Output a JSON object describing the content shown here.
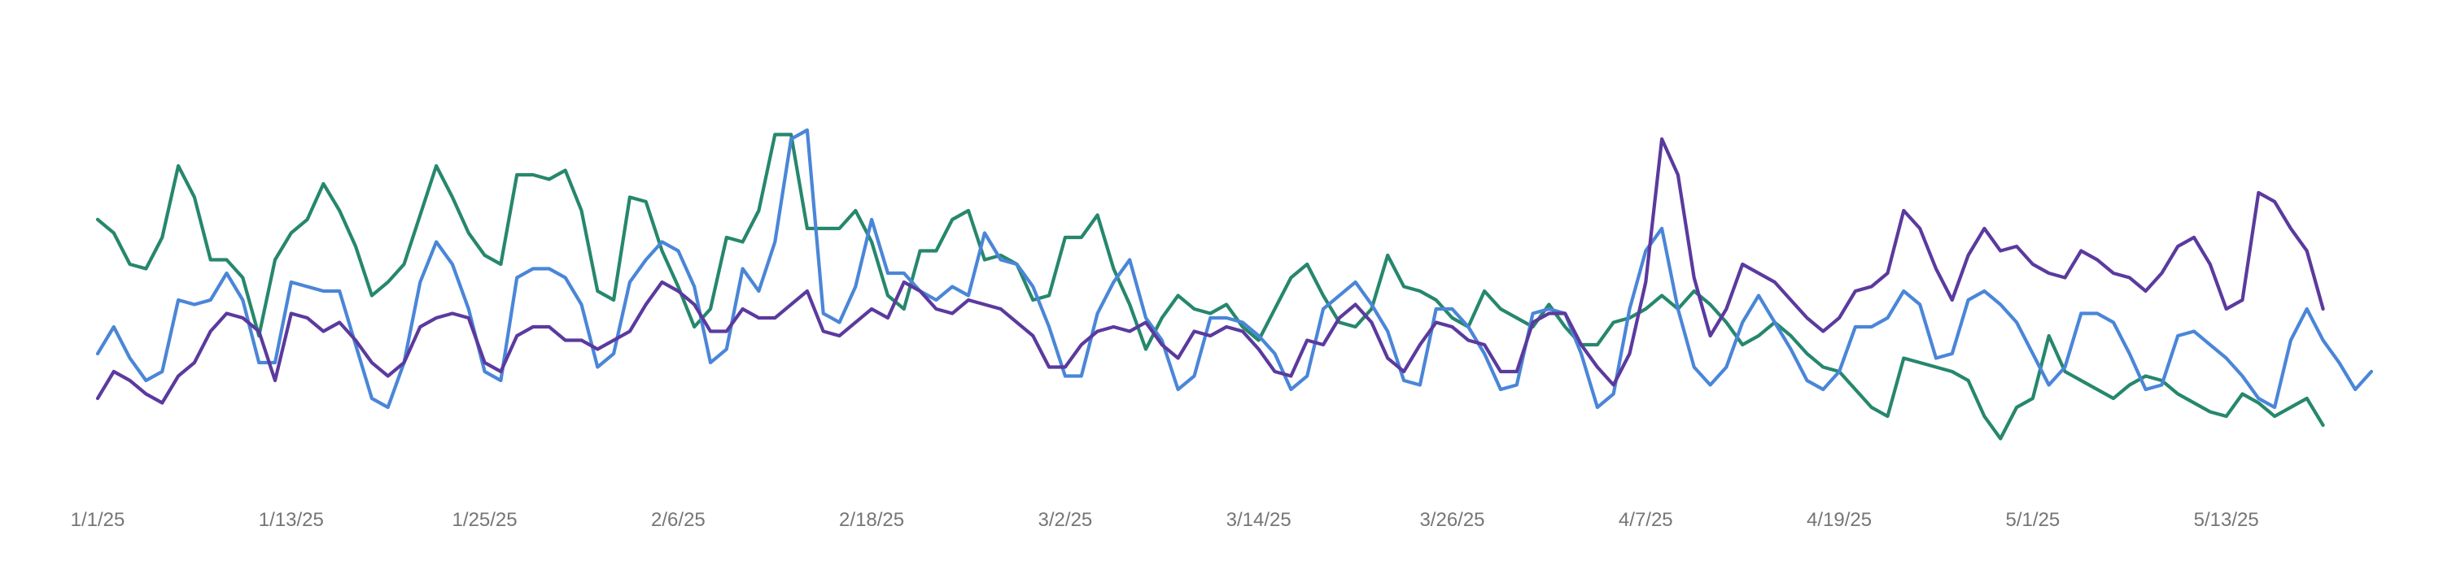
{
  "chart_data": {
    "type": "line",
    "title": "",
    "xlabel": "",
    "ylabel": "",
    "grid": false,
    "legend": "none",
    "x_start": "2025-01-01",
    "x_ticks": [
      "1/1/25",
      "1/13/25",
      "1/25/25",
      "2/6/25",
      "2/18/25",
      "3/2/25",
      "3/14/25",
      "3/26/25",
      "4/7/25",
      "4/19/25",
      "5/1/25",
      "5/13/25"
    ],
    "ylim": [
      0,
      100
    ],
    "series": [
      {
        "color": "#26876c",
        "values": [
          60,
          57,
          50,
          49,
          56,
          72,
          65,
          51,
          51,
          47,
          34,
          51,
          57,
          60,
          68,
          62,
          54,
          43,
          46,
          50,
          61,
          72,
          65,
          57,
          52,
          50,
          70,
          70,
          69,
          71,
          62,
          44,
          42,
          65,
          64,
          53,
          45,
          36,
          40,
          56,
          55,
          62,
          79,
          79,
          58,
          58,
          58,
          62,
          55,
          43,
          40,
          53,
          53,
          60,
          62,
          51,
          52,
          50,
          42,
          43,
          56,
          56,
          61,
          49,
          41,
          31,
          38,
          43,
          40,
          39,
          41,
          36,
          33,
          40,
          47,
          50,
          43,
          37,
          36,
          40,
          52,
          45,
          44,
          42,
          38,
          36,
          44,
          40,
          38,
          36,
          41,
          36,
          32,
          32,
          37,
          38,
          40,
          43,
          40,
          44,
          41,
          37,
          32,
          34,
          37,
          34,
          30,
          27,
          26,
          22,
          18,
          16,
          29,
          28,
          27,
          26,
          24,
          16,
          11,
          18,
          20,
          34,
          26,
          24,
          22,
          20,
          23,
          25,
          24,
          21,
          19,
          17,
          16,
          21,
          19,
          16,
          18,
          20,
          14
        ]
      },
      {
        "color": "#4a86d8",
        "values": [
          30,
          36,
          29,
          24,
          26,
          42,
          41,
          42,
          48,
          42,
          28,
          28,
          46,
          45,
          44,
          44,
          32,
          20,
          18,
          28,
          46,
          55,
          50,
          40,
          26,
          24,
          47,
          49,
          49,
          47,
          41,
          27,
          30,
          46,
          51,
          55,
          53,
          45,
          28,
          31,
          49,
          44,
          55,
          78,
          80,
          39,
          37,
          45,
          60,
          48,
          48,
          44,
          42,
          45,
          43,
          57,
          51,
          50,
          45,
          36,
          25,
          25,
          39,
          46,
          51,
          38,
          33,
          22,
          25,
          38,
          38,
          37,
          34,
          30,
          22,
          25,
          40,
          43,
          46,
          41,
          35,
          24,
          23,
          40,
          40,
          36,
          30,
          22,
          23,
          39,
          40,
          39,
          30,
          18,
          21,
          40,
          53,
          58,
          40,
          27,
          23,
          27,
          37,
          43,
          37,
          31,
          24,
          22,
          26,
          36,
          36,
          38,
          44,
          41,
          29,
          30,
          42,
          44,
          41,
          37,
          30,
          23,
          27,
          39,
          39,
          37,
          30,
          22,
          23,
          34,
          35,
          32,
          29,
          25,
          20,
          18,
          33,
          40,
          33,
          28,
          22,
          26
        ]
      },
      {
        "color": "#5b3a9e",
        "values": [
          20,
          26,
          24,
          21,
          19,
          25,
          28,
          35,
          39,
          38,
          35,
          24,
          39,
          38,
          35,
          37,
          33,
          28,
          25,
          28,
          36,
          38,
          39,
          38,
          28,
          26,
          34,
          36,
          36,
          33,
          33,
          31,
          33,
          35,
          41,
          46,
          44,
          41,
          35,
          35,
          40,
          38,
          38,
          41,
          44,
          35,
          34,
          37,
          40,
          38,
          46,
          44,
          40,
          39,
          42,
          41,
          40,
          37,
          34,
          27,
          27,
          32,
          35,
          36,
          35,
          37,
          32,
          29,
          35,
          34,
          36,
          35,
          31,
          26,
          25,
          33,
          32,
          38,
          41,
          37,
          29,
          26,
          32,
          37,
          36,
          33,
          32,
          26,
          26,
          37,
          39,
          39,
          32,
          27,
          23,
          30,
          46,
          78,
          70,
          47,
          34,
          40,
          50,
          48,
          46,
          42,
          38,
          35,
          38,
          44,
          45,
          48,
          62,
          58,
          49,
          42,
          52,
          58,
          53,
          54,
          50,
          48,
          47,
          53,
          51,
          48,
          47,
          44,
          48,
          54,
          56,
          50,
          40,
          42,
          66,
          64,
          58,
          53,
          40
        ]
      }
    ]
  }
}
